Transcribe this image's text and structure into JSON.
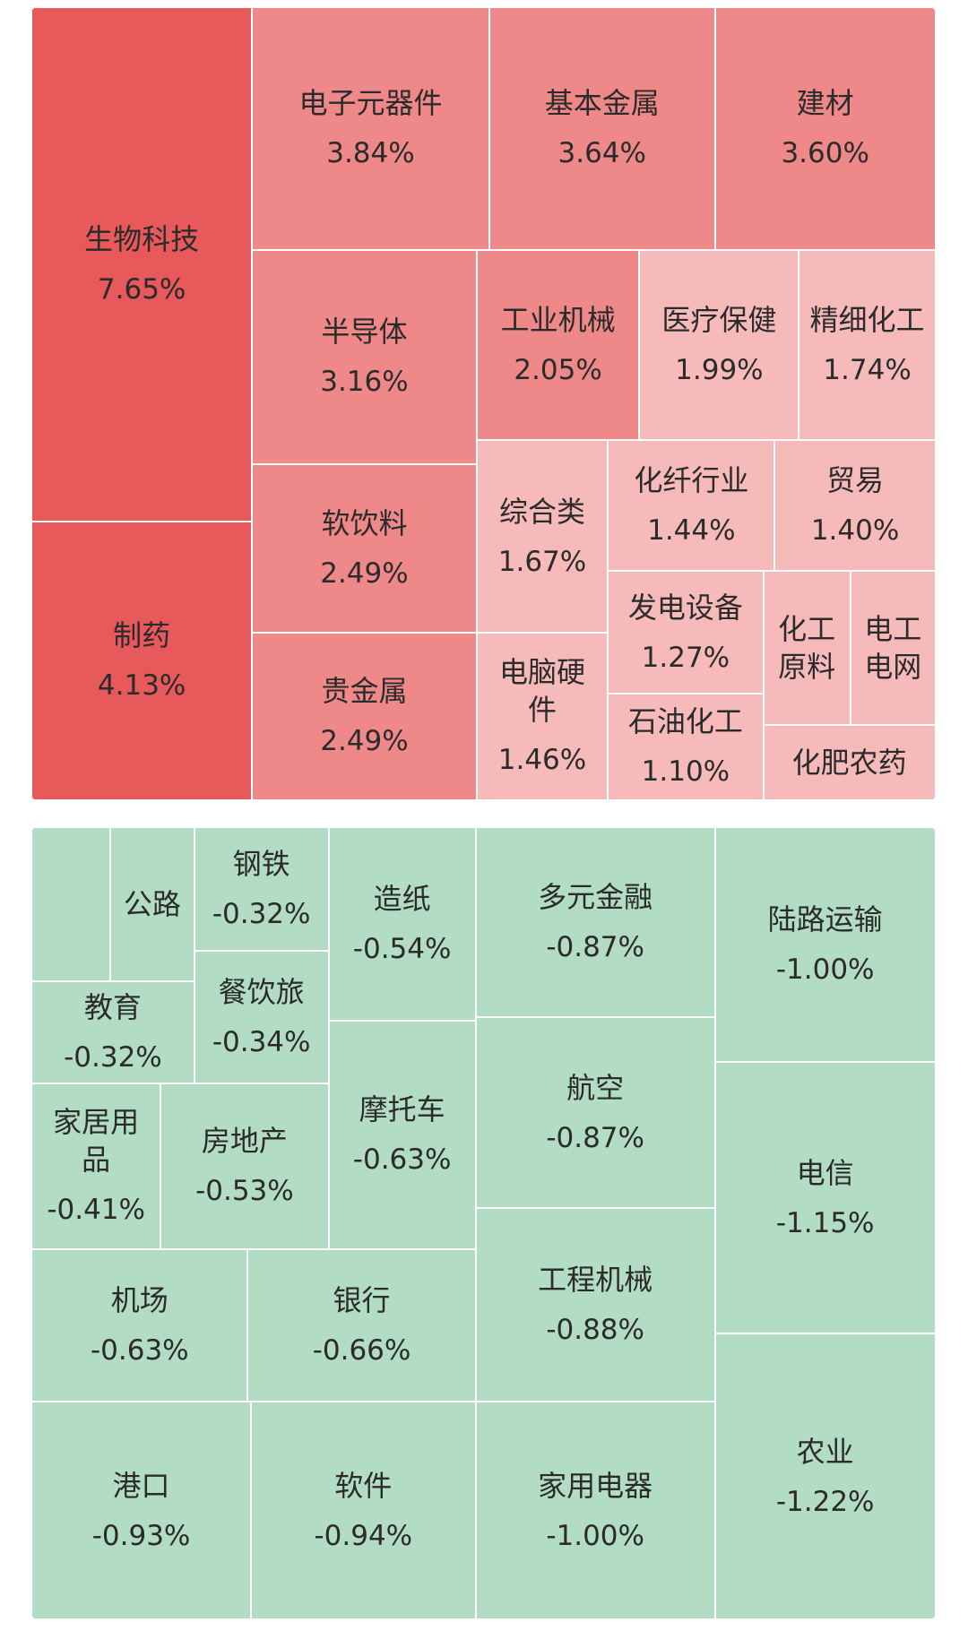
{
  "chart_data": [
    {
      "type": "treemap",
      "categories": [
        "生物科技",
        "制药",
        "电子元器件",
        "基本金属",
        "建材",
        "半导体",
        "软饮料",
        "贵金属",
        "工业机械",
        "医疗保健",
        "精细化工",
        "综合类",
        "电脑硬件",
        "化纤行业",
        "贸易",
        "发电设备",
        "石油化工",
        "化工原料",
        "电工电网",
        "化肥农药"
      ],
      "values": [
        7.65,
        4.13,
        3.84,
        3.64,
        3.6,
        3.16,
        2.49,
        2.49,
        2.05,
        1.99,
        1.74,
        1.67,
        1.46,
        1.44,
        1.4,
        1.27,
        1.1,
        null,
        null,
        null
      ],
      "value_labels": [
        "7.65%",
        "4.13%",
        "3.84%",
        "3.64%",
        "3.60%",
        "3.16%",
        "2.49%",
        "2.49%",
        "2.05%",
        "1.99%",
        "1.74%",
        "1.67%",
        "1.46%",
        "1.44%",
        "1.40%",
        "1.27%",
        "1.10%",
        null,
        null,
        null
      ],
      "colors": [
        "#e8595b",
        "#e8595b",
        "#ef8888",
        "#ef8888",
        "#ef8888",
        "#ef8888",
        "#ef8888",
        "#ef8888",
        "#ef8888",
        "#f6baba",
        "#f6baba",
        "#f6baba",
        "#f6baba",
        "#f6baba",
        "#f6baba",
        "#f6baba",
        "#f6baba",
        "#f6baba",
        "#f6baba",
        "#f6baba"
      ]
    },
    {
      "type": "treemap",
      "categories": [
        null,
        "公路",
        "钢铁",
        "餐饮旅",
        "造纸",
        "教育",
        "家居用品",
        "房地产",
        "摩托车",
        "机场",
        "银行",
        "港口",
        "软件",
        "多元金融",
        "航空",
        "工程机械",
        "家用电器",
        "陆路运输",
        "电信",
        "农业"
      ],
      "values": [
        null,
        null,
        -0.32,
        -0.34,
        -0.54,
        -0.32,
        -0.41,
        -0.53,
        -0.63,
        -0.63,
        -0.66,
        -0.93,
        -0.94,
        -0.87,
        -0.87,
        -0.88,
        -1.0,
        -1.0,
        -1.15,
        -1.22
      ],
      "value_labels": [
        null,
        null,
        "-0.32%",
        "-0.34%",
        "-0.54%",
        "-0.32%",
        "-0.41%",
        "-0.53%",
        "-0.63%",
        "-0.63%",
        "-0.66%",
        "-0.93%",
        "-0.94%",
        "-0.87%",
        "-0.87%",
        "-0.88%",
        "-1.00%",
        "-1.00%",
        "-1.15%",
        "-1.22%"
      ],
      "colors": [
        "#b2dcc3",
        "#b2dcc3",
        "#b2dcc3",
        "#b2dcc3",
        "#b2dcc3",
        "#b2dcc3",
        "#b2dcc3",
        "#b2dcc3",
        "#b2dcc3",
        "#b2dcc3",
        "#b2dcc3",
        "#b2dcc3",
        "#b2dcc3",
        "#b2dcc3",
        "#b2dcc3",
        "#b2dcc3",
        "#b2dcc3",
        "#b2dcc3",
        "#b2dcc3",
        "#b2dcc3"
      ]
    }
  ]
}
